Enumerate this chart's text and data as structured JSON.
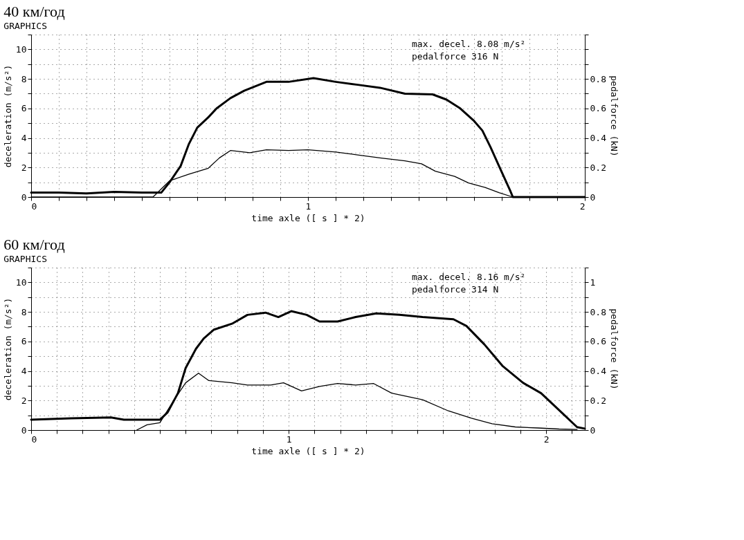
{
  "chart_data": [
    {
      "type": "line",
      "title": "40 км/год",
      "subtitle": "GRAPHICS",
      "xlabel": "time axle ([ s ] * 2)",
      "ylabel": "deceleration (m/s²)",
      "y2label": "pedalforce (kN)",
      "annotations": [
        "max. decel.   8.08 m/s²",
        "pedalforce      316 N"
      ],
      "xlim": [
        0,
        2
      ],
      "ylim": [
        0,
        11
      ],
      "y2lim": [
        0,
        1.1
      ],
      "grid": true,
      "xticks": [
        0,
        {
          "value": 0.1,
          "label": null
        },
        {
          "value": 0.2,
          "label": null
        },
        {
          "value": 0.3,
          "label": null
        },
        {
          "value": 0.4,
          "label": null
        },
        {
          "value": 0.5,
          "label": null
        },
        {
          "value": 0.6,
          "label": null
        },
        {
          "value": 0.7,
          "label": null
        },
        {
          "value": 0.8,
          "label": null
        },
        {
          "value": 0.9,
          "label": null
        },
        1,
        {
          "value": 1.1,
          "label": null
        },
        {
          "value": 1.2,
          "label": null
        },
        {
          "value": 1.3,
          "label": null
        },
        {
          "value": 1.4,
          "label": null
        },
        {
          "value": 1.5,
          "label": null
        },
        {
          "value": 1.6,
          "label": null
        },
        {
          "value": 1.7,
          "label": null
        },
        {
          "value": 1.8,
          "label": null
        },
        {
          "value": 1.9,
          "label": null
        },
        2
      ],
      "yticks": [
        0,
        {
          "value": 1,
          "label": null
        },
        2,
        {
          "value": 3,
          "label": null
        },
        4,
        {
          "value": 5,
          "label": null
        },
        6,
        {
          "value": 7,
          "label": null
        },
        8,
        {
          "value": 9,
          "label": null
        },
        10,
        {
          "value": 11,
          "label": null
        }
      ],
      "y2ticks": [
        0,
        {
          "value": 0.1,
          "label": null
        },
        0.2,
        {
          "value": 0.3,
          "label": null
        },
        0.4,
        {
          "value": 0.5,
          "label": null
        },
        0.6,
        {
          "value": 0.7,
          "label": null
        },
        0.8,
        {
          "value": 0.9,
          "label": null
        },
        {
          "value": 1,
          "label": null
        },
        {
          "value": 1.1,
          "label": null
        }
      ],
      "series": [
        {
          "color": "#000000",
          "axis": "y",
          "x": [
            0,
            0.1,
            0.2,
            0.3,
            0.4,
            0.47,
            0.5,
            0.54,
            0.57,
            0.6,
            0.64,
            0.67,
            0.72,
            0.77,
            0.85,
            0.93,
            1.02,
            1.1,
            1.18,
            1.26,
            1.35,
            1.45,
            1.5,
            1.55,
            1.6,
            1.63,
            1.66,
            1.69,
            1.73,
            1.74,
            2
          ],
          "values": [
            0.3,
            0.3,
            0.25,
            0.35,
            0.3,
            0.3,
            1.0,
            2.1,
            3.6,
            4.7,
            5.4,
            6.0,
            6.7,
            7.2,
            7.8,
            7.8,
            8.05,
            7.8,
            7.6,
            7.4,
            7.0,
            6.95,
            6.6,
            6.0,
            5.15,
            4.5,
            3.35,
            2.1,
            0.45,
            0,
            0
          ]
        },
        {
          "color": "#000000",
          "axis": "y2",
          "x": [
            0,
            0.44,
            0.5,
            0.57,
            0.64,
            0.68,
            0.72,
            0.79,
            0.85,
            0.93,
            1.0,
            1.1,
            1.18,
            1.26,
            1.35,
            1.41,
            1.46,
            1.53,
            1.58,
            1.64,
            1.69,
            1.74,
            2
          ],
          "values": [
            0,
            0,
            0.11,
            0.155,
            0.195,
            0.265,
            0.315,
            0.3,
            0.32,
            0.315,
            0.32,
            0.305,
            0.285,
            0.265,
            0.245,
            0.225,
            0.175,
            0.14,
            0.095,
            0.065,
            0.03,
            0,
            0
          ]
        }
      ]
    },
    {
      "type": "line",
      "title": "60 км/год",
      "subtitle": "GRAPHICS",
      "xlabel": "time axle ([ s ] * 2)",
      "ylabel": "deceleration (m/s²)",
      "y2label": "pedalforce (kN)",
      "annotations": [
        "max. decel.   8.16 m/s²",
        "pedalforce      314 N"
      ],
      "xlim": [
        0,
        2.15
      ],
      "ylim": [
        0,
        11
      ],
      "y2lim": [
        0,
        1.1
      ],
      "grid": true,
      "xticks": [
        0,
        {
          "value": 0.1,
          "label": null
        },
        {
          "value": 0.2,
          "label": null
        },
        {
          "value": 0.3,
          "label": null
        },
        {
          "value": 0.4,
          "label": null
        },
        {
          "value": 0.5,
          "label": null
        },
        {
          "value": 0.6,
          "label": null
        },
        {
          "value": 0.7,
          "label": null
        },
        {
          "value": 0.8,
          "label": null
        },
        {
          "value": 0.9,
          "label": null
        },
        1,
        {
          "value": 1.1,
          "label": null
        },
        {
          "value": 1.2,
          "label": null
        },
        {
          "value": 1.3,
          "label": null
        },
        {
          "value": 1.4,
          "label": null
        },
        {
          "value": 1.5,
          "label": null
        },
        {
          "value": 1.6,
          "label": null
        },
        {
          "value": 1.7,
          "label": null
        },
        {
          "value": 1.8,
          "label": null
        },
        {
          "value": 1.9,
          "label": null
        },
        2,
        {
          "value": 2.1,
          "label": null
        }
      ],
      "yticks": [
        0,
        {
          "value": 1,
          "label": null
        },
        2,
        {
          "value": 3,
          "label": null
        },
        4,
        {
          "value": 5,
          "label": null
        },
        6,
        {
          "value": 7,
          "label": null
        },
        8,
        {
          "value": 9,
          "label": null
        },
        10,
        {
          "value": 11,
          "label": null
        }
      ],
      "y2ticks": [
        0,
        {
          "value": 0.1,
          "label": null
        },
        0.2,
        {
          "value": 0.3,
          "label": null
        },
        0.4,
        {
          "value": 0.5,
          "label": null
        },
        0.6,
        {
          "value": 0.7,
          "label": null
        },
        0.8,
        {
          "value": 0.9,
          "label": null
        },
        1,
        {
          "value": 1.1,
          "label": null
        }
      ],
      "series": [
        {
          "color": "#000000",
          "axis": "y",
          "x": [
            0,
            0.155,
            0.31,
            0.36,
            0.5,
            0.53,
            0.57,
            0.6,
            0.64,
            0.67,
            0.71,
            0.78,
            0.84,
            0.91,
            0.96,
            1.01,
            1.07,
            1.12,
            1.19,
            1.26,
            1.34,
            1.43,
            1.52,
            1.64,
            1.69,
            1.76,
            1.83,
            1.91,
            1.98,
            2.05,
            2.12,
            2.15
          ],
          "values": [
            0.7,
            0.8,
            0.85,
            0.7,
            0.7,
            1.2,
            2.5,
            4.2,
            5.5,
            6.2,
            6.8,
            7.2,
            7.8,
            7.95,
            7.65,
            8.05,
            7.8,
            7.35,
            7.35,
            7.65,
            7.9,
            7.8,
            7.65,
            7.5,
            7.05,
            5.8,
            4.35,
            3.2,
            2.5,
            1.35,
            0.2,
            0.1
          ]
        },
        {
          "color": "#000000",
          "axis": "y2",
          "x": [
            0.41,
            0.45,
            0.5,
            0.55,
            0.6,
            0.65,
            0.69,
            0.78,
            0.84,
            0.93,
            0.98,
            1.05,
            1.12,
            1.19,
            1.26,
            1.33,
            1.4,
            1.52,
            1.62,
            1.71,
            1.79,
            1.88,
            1.97,
            2.05,
            2.12
          ],
          "values": [
            0,
            0.036,
            0.05,
            0.19,
            0.32,
            0.385,
            0.335,
            0.32,
            0.305,
            0.305,
            0.32,
            0.265,
            0.295,
            0.315,
            0.305,
            0.315,
            0.25,
            0.205,
            0.13,
            0.08,
            0.043,
            0.021,
            0.014,
            0.007,
            0.004
          ]
        }
      ]
    }
  ]
}
